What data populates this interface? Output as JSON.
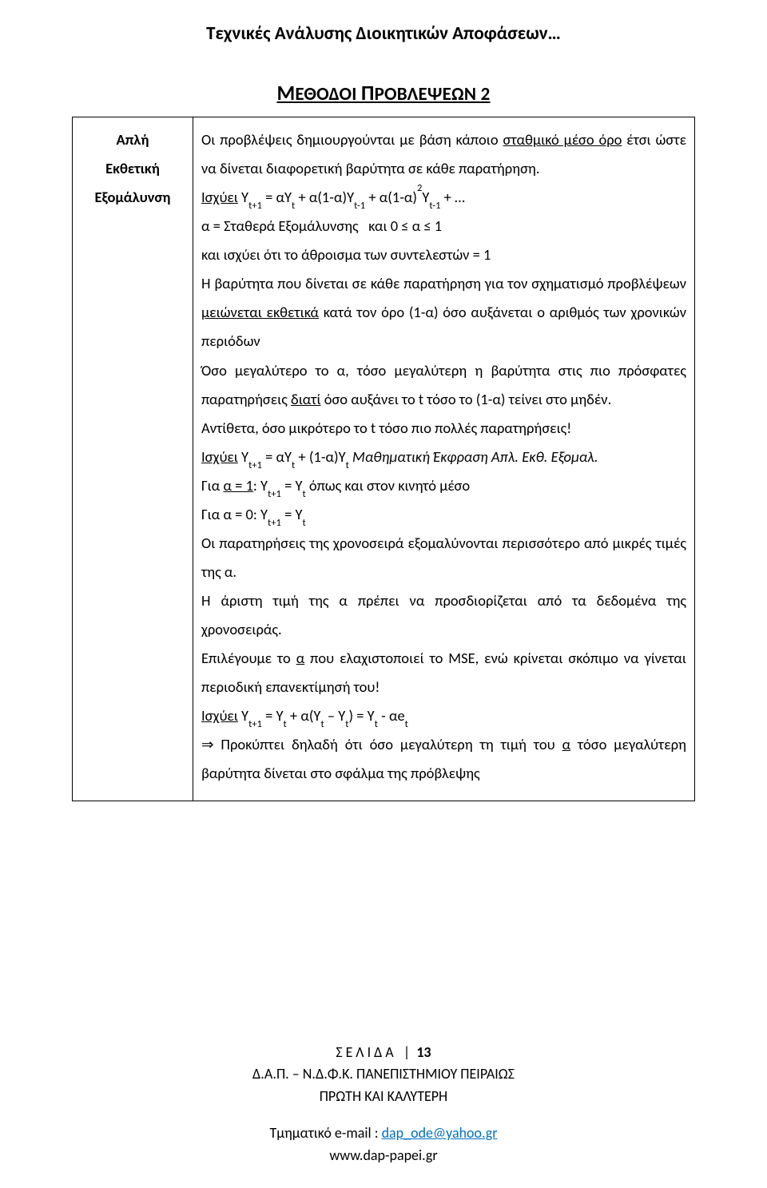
{
  "header_running": "Τεχνικές Ανάλυσης Διοικητικών Αποφάσεων…",
  "section_title_html": "<span class='big'>Μ</span>ΕΘΟΔΟΙ <span class='big'>Π</span>ΡΟΒΛΕΨΕΩΝ 2",
  "left_col": {
    "l1": "Απλή",
    "l2": "Εκθετική",
    "l3": "Εξομάλυνση"
  },
  "body": {
    "p1": "Οι προβλέψεις δημιουργούνται με βάση κάποιο <span class='u'>σταθμικό μέσο όρο</span> έτσι ώστε να δίνεται διαφορετική βαρύτητα σε κάθε παρατήρηση.",
    "p2": "<span class='u'>Ισχύει</span> Y<sub>t+1</sub> = αY<sub>t</sub> + α(1-α)Y<sub>t-1</sub> + α(1-α)<sup>2</sup>Y<sub>t-1</sub> + …",
    "p3": "α = Σταθερά Εξομάλυνσης&nbsp;&nbsp;&nbsp;και 0 ≤ α ≤ 1",
    "p4": "και ισχύει ότι το άθροισμα των συντελεστών = 1",
    "p5": "Η βαρύτητα που δίνεται σε κάθε παρατήρηση για τον σχηματισμό προβλέψεων <span class='u'>μειώνεται εκθετικά</span> κατά τον όρο (1-α) όσο αυξάνεται ο αριθμός των χρονικών περιόδων",
    "p6": "Όσο μεγαλύτερο το α, τόσο μεγαλύτερη η βαρύτητα στις πιο πρόσφατες παρατηρήσεις <span class='u'>διατί</span> όσο αυξάνει το t τόσο το (1-α) τείνει στο μηδέν.",
    "p7": "Αντίθετα, όσο μικρότερο το t τόσο πιο πολλές παρατηρήσεις!",
    "p8": "<span class='u'>Ισχύει</span> Y<sub>t+1</sub> = αY<sub>t</sub> + (1-α)Y<sub>t</sub> <i>Μαθηματική Έκφραση Απλ. Εκθ. Εξομαλ.</i>",
    "p9": "Για <span class='u'>α = 1</span>: Y<sub>t+1</sub> = Y<sub>t</sub> όπως και στον κινητό μέσο",
    "p10": "Για α = 0: Y<sub>t+1</sub> = Y<sub>t</sub>",
    "p11": "Οι παρατηρήσεις της χρονοσειρά εξομαλύνονται περισσότερο από μικρές τιμές της α.",
    "p12": "Η άριστη τιμή της α πρέπει να προσδιορίζεται από τα δεδομένα της χρονοσειράς.",
    "p13": "Επιλέγουμε το <span class='u'>α</span> που ελαχιστοποιεί το MSE, ενώ κρίνεται σκόπιμο να γίνεται περιοδική επανεκτίμησή του!",
    "p14": "<span class='u'>Ισχύει</span> Y<sub>t+1</sub> = Y<sub>t</sub> + α(Y<sub>t</sub> – Y<sub>t</sub>) = Y<sub>t</sub> - αe<sub>t</sub>",
    "p15": "⇒ Προκύπτει δηλαδή ότι όσο μεγαλύτερη τη τιμή του <span class='u'>α</span> τόσο μεγαλύτερη βαρύτητα δίνεται στο σφάλμα της πρόβλεψης"
  },
  "footer": {
    "page_label": "ΣΕΛΙΔΑ",
    "page_no": "13",
    "line2": "Δ.Α.Π. – Ν.Δ.Φ.Κ. ΠΑΝΕΠΙΣΤΗΜΙΟΥ ΠΕΙΡΑΙΩΣ",
    "line3": "ΠΡΩΤΗ ΚΑΙ ΚΑΛΥΤΕΡΗ",
    "line4_prefix": "Τμηματικό e-mail : ",
    "email": "dap_ode@yahoo.gr",
    "line5": "www.dap-papei.gr"
  }
}
